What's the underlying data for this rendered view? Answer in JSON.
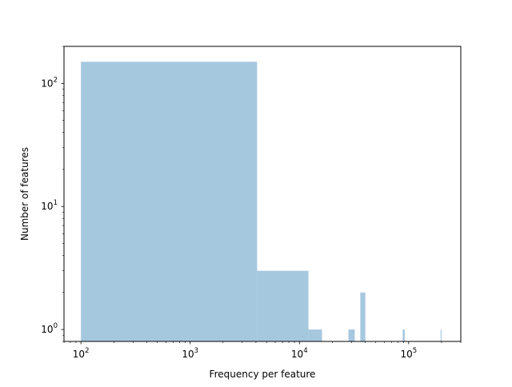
{
  "chart_data": {
    "type": "bar",
    "title": "",
    "xlabel": "Frequency per feature",
    "ylabel": "Number of features",
    "xscale": "log",
    "yscale": "log",
    "xlim": [
      70,
      300000
    ],
    "ylim": [
      0.8,
      200
    ],
    "grid": false,
    "legend": "none",
    "bar_color": "#a6c8df",
    "x_ticks": [
      {
        "value": 100,
        "base": "10",
        "exp": "2"
      },
      {
        "value": 1000,
        "base": "10",
        "exp": "3"
      },
      {
        "value": 10000,
        "base": "10",
        "exp": "4"
      },
      {
        "value": 100000,
        "base": "10",
        "exp": "5"
      }
    ],
    "y_ticks": [
      {
        "value": 1,
        "base": "10",
        "exp": "0"
      },
      {
        "value": 10,
        "base": "10",
        "exp": "1"
      },
      {
        "value": 100,
        "base": "10",
        "exp": "2"
      }
    ],
    "bins": [
      {
        "x0": 100,
        "x1": 4100,
        "count": 150
      },
      {
        "x0": 4100,
        "x1": 12100,
        "count": 3
      },
      {
        "x0": 12100,
        "x1": 16100,
        "count": 1
      },
      {
        "x0": 28100,
        "x1": 32100,
        "count": 1
      },
      {
        "x0": 36100,
        "x1": 40100,
        "count": 2
      },
      {
        "x0": 88100,
        "x1": 92100,
        "count": 1
      },
      {
        "x0": 196100,
        "x1": 200100,
        "count": 1
      }
    ]
  }
}
